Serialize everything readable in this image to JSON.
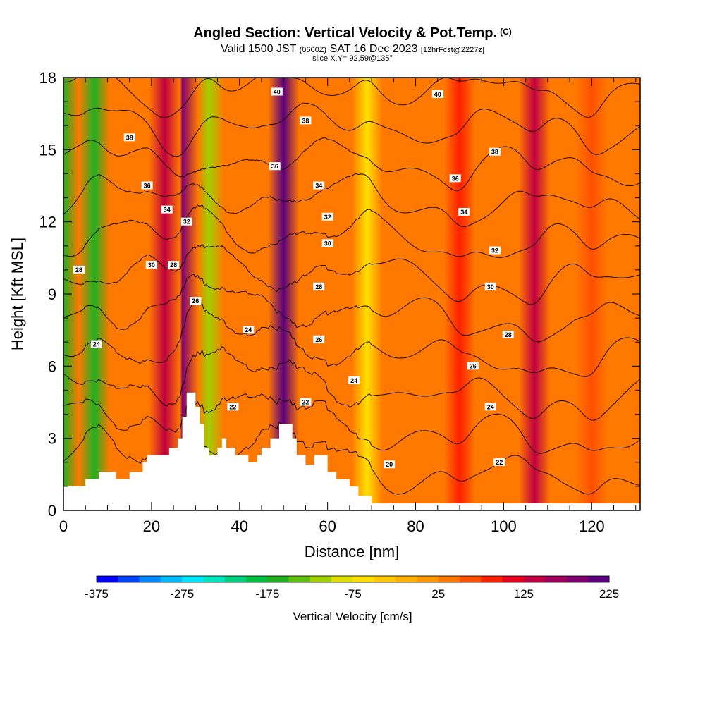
{
  "header": {
    "title": "Angled Section: Vertical Velocity & Pot.Temp.",
    "title_unit": "(C)",
    "subtitle_part1": "Valid 1500 JST",
    "subtitle_part2": "(0600Z)",
    "subtitle_part3": "SAT 16 Dec 2023",
    "subtitle_part4": "[12hrFcst@2227z]",
    "slice": "slice X,Y= 92,59@135°"
  },
  "chart_data": {
    "type": "heatmap",
    "xlabel": "Distance [nm]",
    "ylabel": "Height [Kft MSL]",
    "xlim": [
      0,
      131
    ],
    "ylim": [
      0,
      18
    ],
    "x_ticks": [
      0,
      20,
      40,
      60,
      80,
      100,
      120
    ],
    "y_ticks": [
      0,
      3,
      6,
      9,
      12,
      15,
      18
    ],
    "colorbar": {
      "label": "Vertical Velocity [cm/s]",
      "range": [
        -375,
        225
      ],
      "tick_values": [
        -375,
        -275,
        -175,
        -75,
        25,
        125,
        225
      ],
      "colors": [
        "#0000ff",
        "#0044ff",
        "#0088ff",
        "#00bbff",
        "#00e5ff",
        "#00e5c0",
        "#00d080",
        "#00c040",
        "#20b020",
        "#60c010",
        "#a0d000",
        "#e0e000",
        "#ffe000",
        "#ffc800",
        "#ffb000",
        "#ff9800",
        "#ff7800",
        "#ff5000",
        "#ff2000",
        "#e80020",
        "#c00040",
        "#a00060",
        "#800070",
        "#5a0080"
      ]
    },
    "terrain_profile": [
      [
        0,
        1.0
      ],
      [
        5,
        1.0
      ],
      [
        5,
        1.3
      ],
      [
        8,
        1.3
      ],
      [
        8,
        1.6
      ],
      [
        12,
        1.6
      ],
      [
        12,
        1.3
      ],
      [
        15,
        1.3
      ],
      [
        15,
        1.6
      ],
      [
        18,
        1.6
      ],
      [
        18,
        2.0
      ],
      [
        19,
        2.0
      ],
      [
        19,
        2.3
      ],
      [
        24,
        2.3
      ],
      [
        24,
        2.6
      ],
      [
        26,
        2.6
      ],
      [
        26,
        3.0
      ],
      [
        27,
        3.0
      ],
      [
        27,
        3.9
      ],
      [
        28,
        3.9
      ],
      [
        28,
        4.9
      ],
      [
        30,
        4.9
      ],
      [
        30,
        4.3
      ],
      [
        31,
        4.3
      ],
      [
        31,
        3.6
      ],
      [
        32,
        3.6
      ],
      [
        32,
        2.6
      ],
      [
        33,
        2.6
      ],
      [
        33,
        2.3
      ],
      [
        35,
        2.3
      ],
      [
        35,
        2.6
      ],
      [
        36,
        2.6
      ],
      [
        36,
        3.0
      ],
      [
        37,
        3.0
      ],
      [
        37,
        2.6
      ],
      [
        39,
        2.6
      ],
      [
        39,
        2.3
      ],
      [
        42,
        2.3
      ],
      [
        42,
        2.0
      ],
      [
        44,
        2.0
      ],
      [
        44,
        2.3
      ],
      [
        45,
        2.3
      ],
      [
        45,
        2.6
      ],
      [
        47,
        2.6
      ],
      [
        47,
        3.0
      ],
      [
        49,
        3.0
      ],
      [
        49,
        3.6
      ],
      [
        52,
        3.6
      ],
      [
        52,
        3.0
      ],
      [
        53,
        3.0
      ],
      [
        53,
        2.3
      ],
      [
        55,
        2.3
      ],
      [
        55,
        1.9
      ],
      [
        57,
        1.9
      ],
      [
        57,
        2.3
      ],
      [
        60,
        2.3
      ],
      [
        60,
        1.6
      ],
      [
        62,
        1.6
      ],
      [
        62,
        1.3
      ],
      [
        65,
        1.3
      ],
      [
        65,
        1.0
      ],
      [
        67,
        1.0
      ],
      [
        67,
        0.6
      ],
      [
        70,
        0.6
      ],
      [
        70,
        0.3
      ],
      [
        131,
        0.3
      ]
    ],
    "velocity_bands": [
      {
        "center": 7,
        "value": -175
      },
      {
        "center": 23,
        "value": 125
      },
      {
        "center": 27,
        "value": 175
      },
      {
        "center": 33,
        "value": -125
      },
      {
        "center": 50,
        "value": 200
      },
      {
        "center": 69,
        "value": -75
      },
      {
        "center": 90,
        "value": 75
      },
      {
        "center": 107,
        "value": 125
      },
      {
        "center": 120,
        "value": 50
      }
    ],
    "contour_levels": [
      20,
      22,
      24,
      26,
      28,
      30,
      32,
      34,
      36,
      38,
      40
    ],
    "contour_labels": [
      {
        "text": "40",
        "x": 48.5,
        "y": 17.4
      },
      {
        "text": "40",
        "x": 85,
        "y": 17.3
      },
      {
        "text": "38",
        "x": 55,
        "y": 16.2
      },
      {
        "text": "38",
        "x": 15,
        "y": 15.5
      },
      {
        "text": "38",
        "x": 98,
        "y": 14.9
      },
      {
        "text": "36",
        "x": 48,
        "y": 14.3
      },
      {
        "text": "36",
        "x": 89,
        "y": 13.8
      },
      {
        "text": "36",
        "x": 19,
        "y": 13.5
      },
      {
        "text": "34",
        "x": 58,
        "y": 13.5
      },
      {
        "text": "34",
        "x": 23.5,
        "y": 12.5
      },
      {
        "text": "34",
        "x": 91,
        "y": 12.4
      },
      {
        "text": "32",
        "x": 28,
        "y": 12.0
      },
      {
        "text": "32",
        "x": 60,
        "y": 12.2
      },
      {
        "text": "32",
        "x": 98,
        "y": 10.8
      },
      {
        "text": "30",
        "x": 60,
        "y": 11.1
      },
      {
        "text": "30",
        "x": 20,
        "y": 10.2
      },
      {
        "text": "30",
        "x": 97,
        "y": 9.3
      },
      {
        "text": "28",
        "x": 3.5,
        "y": 10.0
      },
      {
        "text": "28",
        "x": 25,
        "y": 10.2
      },
      {
        "text": "28",
        "x": 58,
        "y": 9.3
      },
      {
        "text": "28",
        "x": 101,
        "y": 7.3
      },
      {
        "text": "26",
        "x": 30,
        "y": 8.7
      },
      {
        "text": "26",
        "x": 58,
        "y": 7.1
      },
      {
        "text": "26",
        "x": 93,
        "y": 6.0
      },
      {
        "text": "24",
        "x": 7.5,
        "y": 6.9
      },
      {
        "text": "24",
        "x": 42,
        "y": 7.5
      },
      {
        "text": "24",
        "x": 66,
        "y": 5.4
      },
      {
        "text": "24",
        "x": 97,
        "y": 4.3
      },
      {
        "text": "22",
        "x": 38.5,
        "y": 4.3
      },
      {
        "text": "22",
        "x": 55,
        "y": 4.5
      },
      {
        "text": "22",
        "x": 99,
        "y": 2.0
      },
      {
        "text": "20",
        "x": 74,
        "y": 1.9
      }
    ]
  }
}
